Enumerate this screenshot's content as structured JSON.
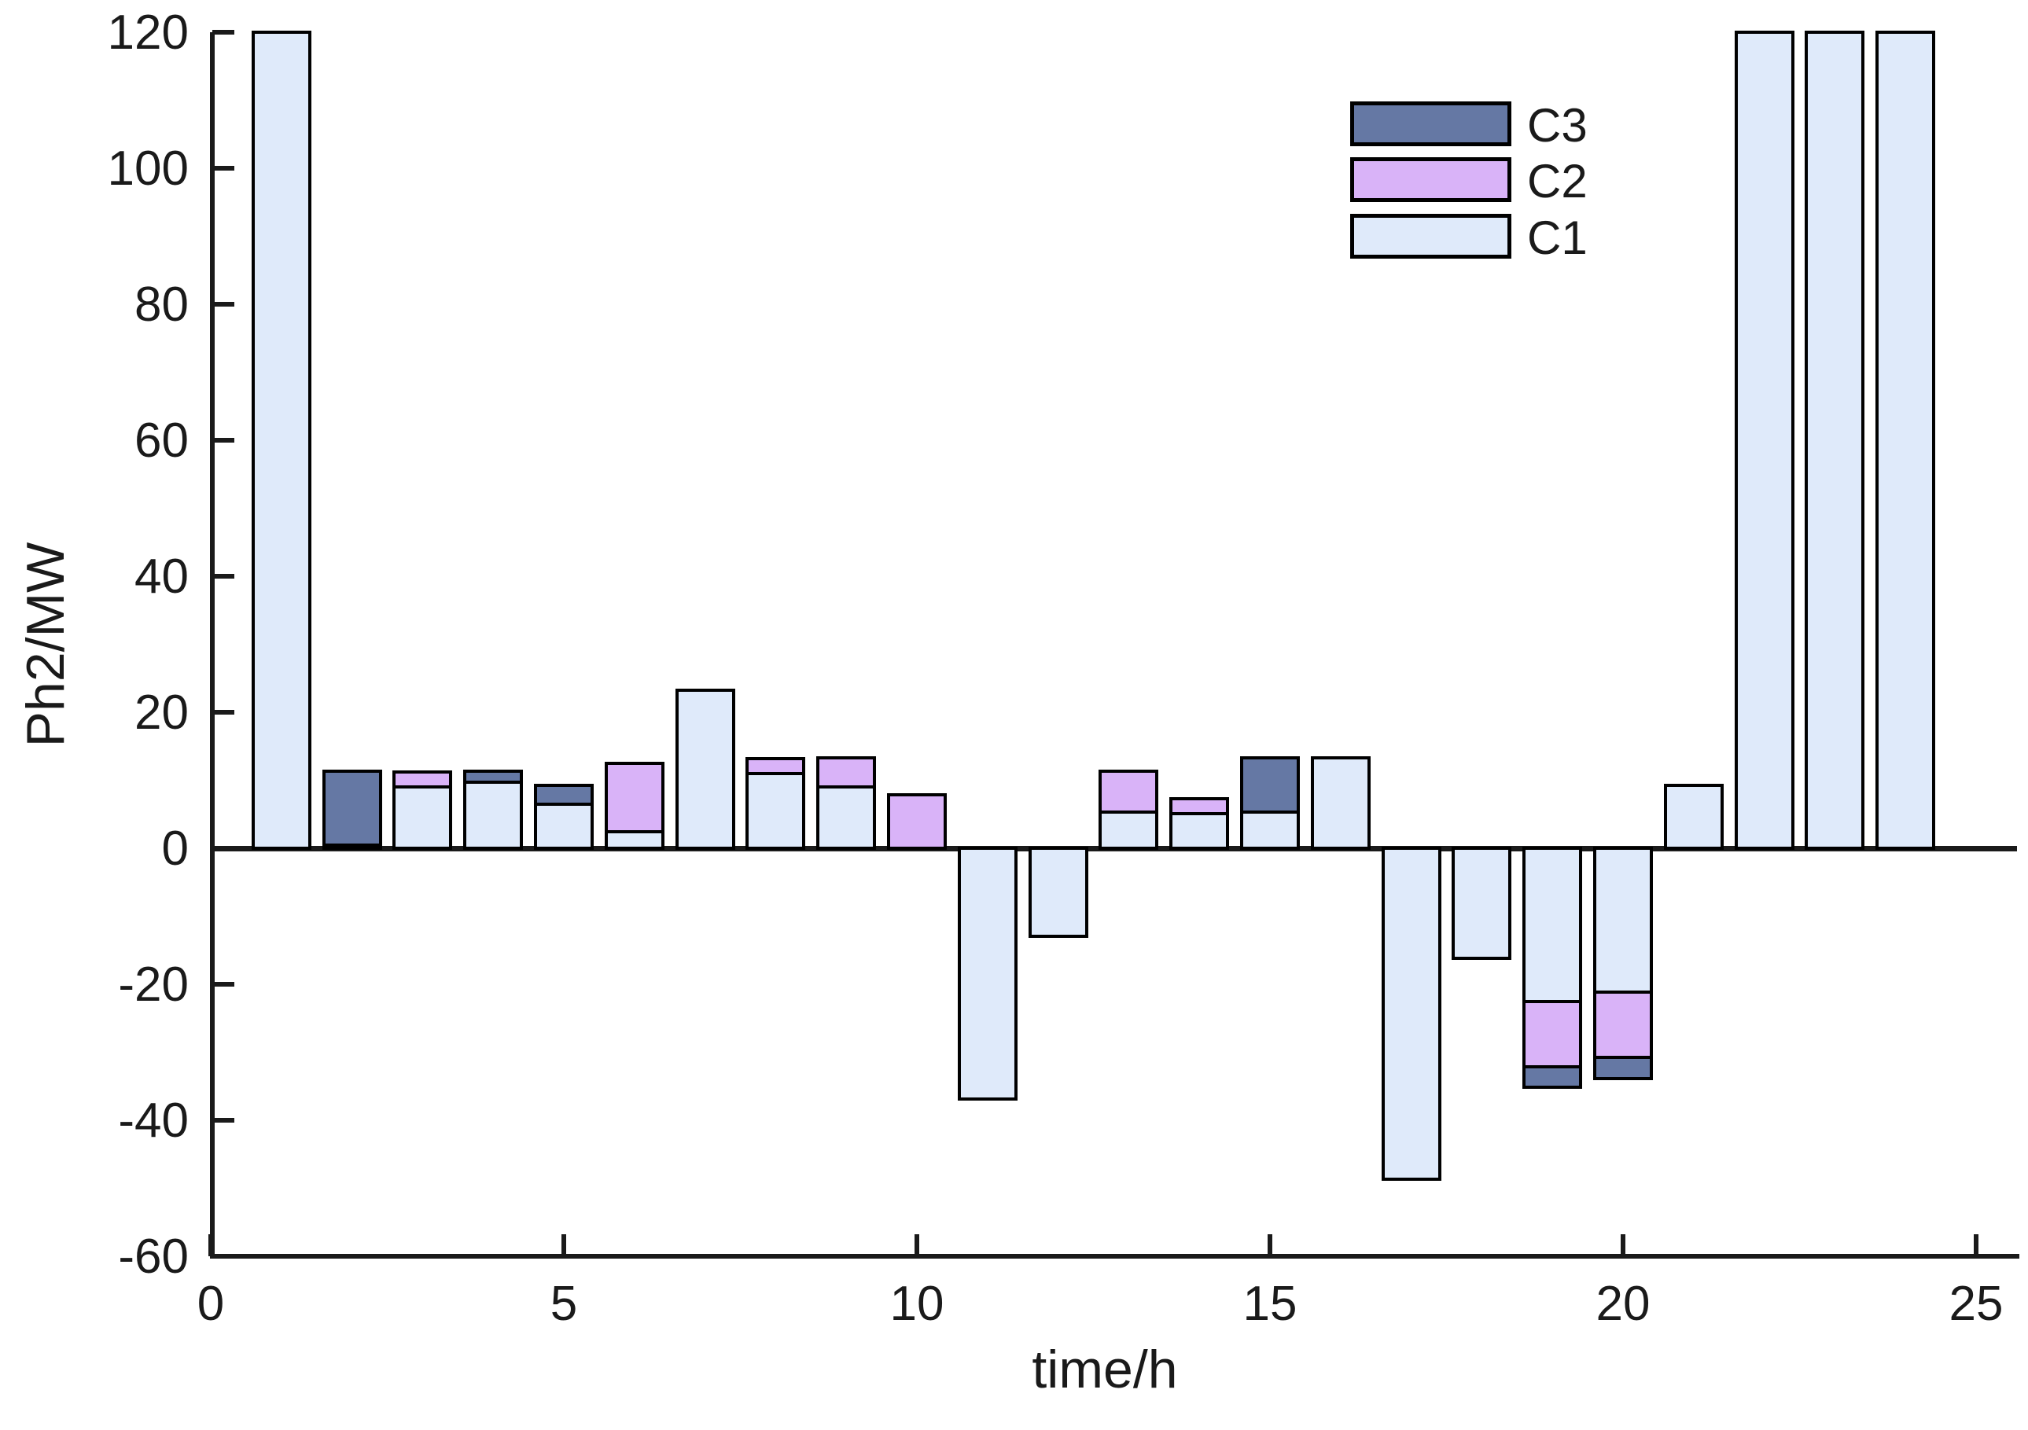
{
  "axes": {
    "x_label": "time/h",
    "y_label": "Ph2/MW",
    "x_ticks": [
      0,
      5,
      10,
      15,
      20,
      25
    ],
    "y_ticks": [
      -60,
      -40,
      -20,
      0,
      20,
      40,
      60,
      80,
      100,
      120
    ],
    "axis_color": "#1a1a1a",
    "bar_edge_color": "#000000"
  },
  "legend": [
    {
      "label": "C3",
      "color": "#6578a4"
    },
    {
      "label": "C2",
      "color": "#d9b3f8"
    },
    {
      "label": "C1",
      "color": "#dfeafa"
    }
  ],
  "chart_data": {
    "type": "bar",
    "stacked": true,
    "title": "",
    "xlabel": "time/h",
    "ylabel": "Ph2/MW",
    "xlim": [
      0,
      25
    ],
    "ylim": [
      -60,
      120
    ],
    "grid": false,
    "legend_position": "upper right",
    "bar_width": 0.8,
    "x": [
      1,
      2,
      3,
      4,
      5,
      6,
      7,
      8,
      9,
      10,
      11,
      12,
      13,
      14,
      15,
      16,
      17,
      18,
      19,
      20,
      21,
      22,
      23,
      24
    ],
    "series": [
      {
        "name": "C1",
        "color": "#dfeafa",
        "values": [
          120,
          0.5,
          9.0,
          9.7,
          6.5,
          2.4,
          23.2,
          11.0,
          9.0,
          0,
          -36.9,
          -12.9,
          5.3,
          5.1,
          5.3,
          13.3,
          -48.7,
          -16.2,
          -22.5,
          -21.1,
          9.2,
          120,
          120,
          120
        ]
      },
      {
        "name": "C2",
        "color": "#d9b3f8",
        "values": [
          0,
          0,
          2.2,
          0,
          0,
          10.1,
          0,
          2.2,
          4.3,
          7.9,
          0,
          0,
          6.0,
          2.2,
          0,
          0,
          0,
          0,
          -9.6,
          -9.6,
          0,
          0,
          0,
          0
        ]
      },
      {
        "name": "C3",
        "color": "#6578a4",
        "values": [
          0,
          10.8,
          0,
          1.6,
          2.7,
          0,
          0,
          0,
          0,
          0,
          0,
          0,
          0,
          0,
          8.0,
          0,
          0,
          0,
          -3.1,
          -3.2,
          0,
          0,
          0,
          0
        ]
      }
    ]
  }
}
